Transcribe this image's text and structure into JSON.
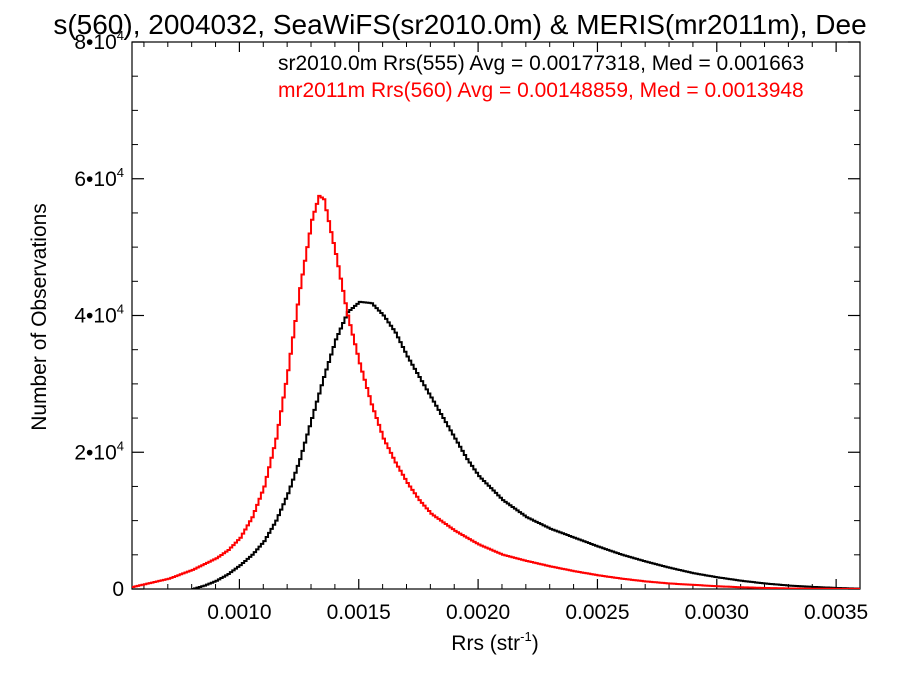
{
  "chart_data": {
    "type": "line",
    "title": "s(560), 2004032, SeaWiFS(sr2010.0m) & MERIS(mr2011m), Dee",
    "xlabel": "Rrs (str",
    "xlabel_sup": "-1",
    "xlabel_close": ")",
    "ylabel": "Number of Observations",
    "xlim": [
      0.00055,
      0.0036
    ],
    "ylim": [
      0,
      80000
    ],
    "x_ticks": [
      {
        "value": 0.001,
        "label": "0.0010"
      },
      {
        "value": 0.0015,
        "label": "0.0015"
      },
      {
        "value": 0.002,
        "label": "0.0020"
      },
      {
        "value": 0.0025,
        "label": "0.0025"
      },
      {
        "value": 0.003,
        "label": "0.0030"
      },
      {
        "value": 0.0035,
        "label": "0.0035"
      }
    ],
    "y_ticks": [
      {
        "value": 0,
        "label": "0",
        "sup": ""
      },
      {
        "value": 20000,
        "label": "2•10",
        "sup": "4"
      },
      {
        "value": 40000,
        "label": "4•10",
        "sup": "4"
      },
      {
        "value": 60000,
        "label": "6•10",
        "sup": "4"
      },
      {
        "value": 80000,
        "label": "8•10",
        "sup": "4"
      }
    ],
    "annotations": [
      {
        "text": "sr2010.0m Rrs(555) Avg = 0.00177318, Med = 0.001663",
        "color": "#000000"
      },
      {
        "text": "mr2011m Rrs(560) Avg = 0.00148859, Med = 0.0013948",
        "color": "#ff0000"
      }
    ],
    "series": [
      {
        "color": "#000000",
        "x": [
          0.0008,
          0.00085,
          0.0009,
          0.00095,
          0.001,
          0.00105,
          0.0011,
          0.00115,
          0.0012,
          0.00125,
          0.0013,
          0.00135,
          0.0014,
          0.00145,
          0.0015,
          0.00155,
          0.0016,
          0.00165,
          0.0017,
          0.00175,
          0.0018,
          0.00185,
          0.0019,
          0.00195,
          0.002,
          0.0021,
          0.0022,
          0.0023,
          0.0024,
          0.0025,
          0.0026,
          0.0027,
          0.0028,
          0.0029,
          0.003,
          0.0031,
          0.0032,
          0.0033,
          0.0034,
          0.0035,
          0.0036
        ],
        "values": [
          0,
          500,
          1200,
          2200,
          3500,
          5000,
          7000,
          10000,
          14000,
          19000,
          25000,
          31000,
          36500,
          40500,
          42000,
          41800,
          40000,
          37500,
          34000,
          31000,
          28000,
          25000,
          22000,
          19000,
          16500,
          13000,
          10500,
          8800,
          7500,
          6200,
          5000,
          4000,
          3100,
          2300,
          1700,
          1200,
          800,
          500,
          300,
          150,
          50
        ]
      },
      {
        "color": "#ff0000",
        "x": [
          0.00055,
          0.0006,
          0.0007,
          0.0008,
          0.0009,
          0.00095,
          0.001,
          0.00105,
          0.0011,
          0.00115,
          0.0012,
          0.00125,
          0.0013,
          0.00133,
          0.00135,
          0.0014,
          0.00145,
          0.0015,
          0.00155,
          0.0016,
          0.00165,
          0.0017,
          0.00175,
          0.0018,
          0.0019,
          0.002,
          0.0021,
          0.0022,
          0.0023,
          0.0024,
          0.0025,
          0.0026,
          0.0027,
          0.0028,
          0.0029,
          0.003,
          0.0031,
          0.0032,
          0.0033,
          0.0034,
          0.0036
        ],
        "values": [
          300,
          700,
          1500,
          2800,
          4500,
          5700,
          7500,
          10500,
          15000,
          22000,
          32000,
          44000,
          54000,
          57500,
          57000,
          49000,
          40000,
          33000,
          27000,
          22000,
          18500,
          15500,
          13000,
          11000,
          8500,
          6500,
          5000,
          4100,
          3300,
          2600,
          2000,
          1500,
          1100,
          800,
          600,
          400,
          250,
          150,
          80,
          40,
          10
        ]
      }
    ]
  }
}
